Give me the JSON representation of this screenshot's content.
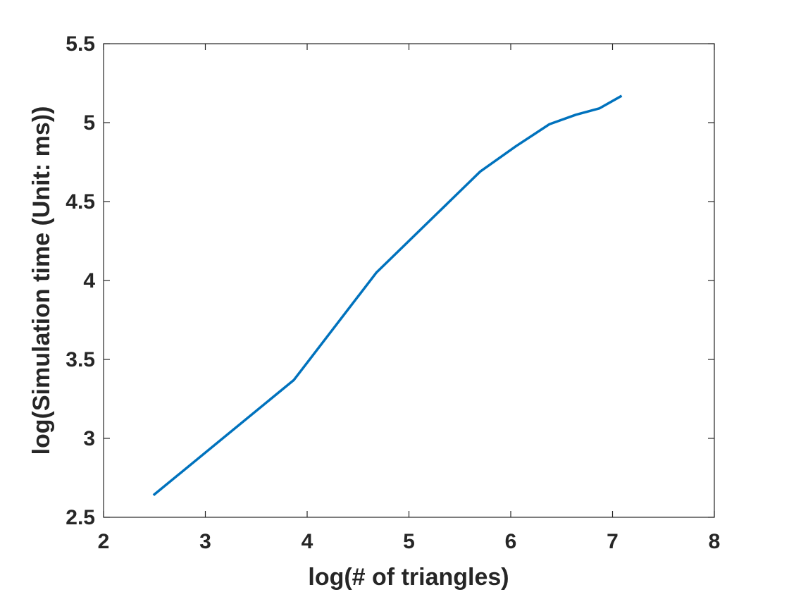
{
  "chart_data": {
    "type": "line",
    "title": "",
    "xlabel": "log(# of triangles)",
    "ylabel": "log(Simulation time (Unit: ms))",
    "xlim": [
      2,
      8
    ],
    "ylim": [
      2.5,
      5.5
    ],
    "xticks": [
      "2",
      "3",
      "4",
      "5",
      "6",
      "7",
      "8"
    ],
    "yticks": [
      "2.5",
      "3",
      "3.5",
      "4",
      "4.5",
      "5",
      "5.5"
    ],
    "grid": false,
    "series": [
      {
        "color": "#0072BD",
        "x": [
          2.49,
          3.87,
          4.68,
          5.27,
          5.7,
          6.05,
          6.38,
          6.64,
          6.87,
          7.09
        ],
        "y": [
          2.64,
          3.37,
          4.05,
          4.42,
          4.69,
          4.85,
          4.99,
          5.05,
          5.09,
          5.17
        ]
      }
    ]
  }
}
